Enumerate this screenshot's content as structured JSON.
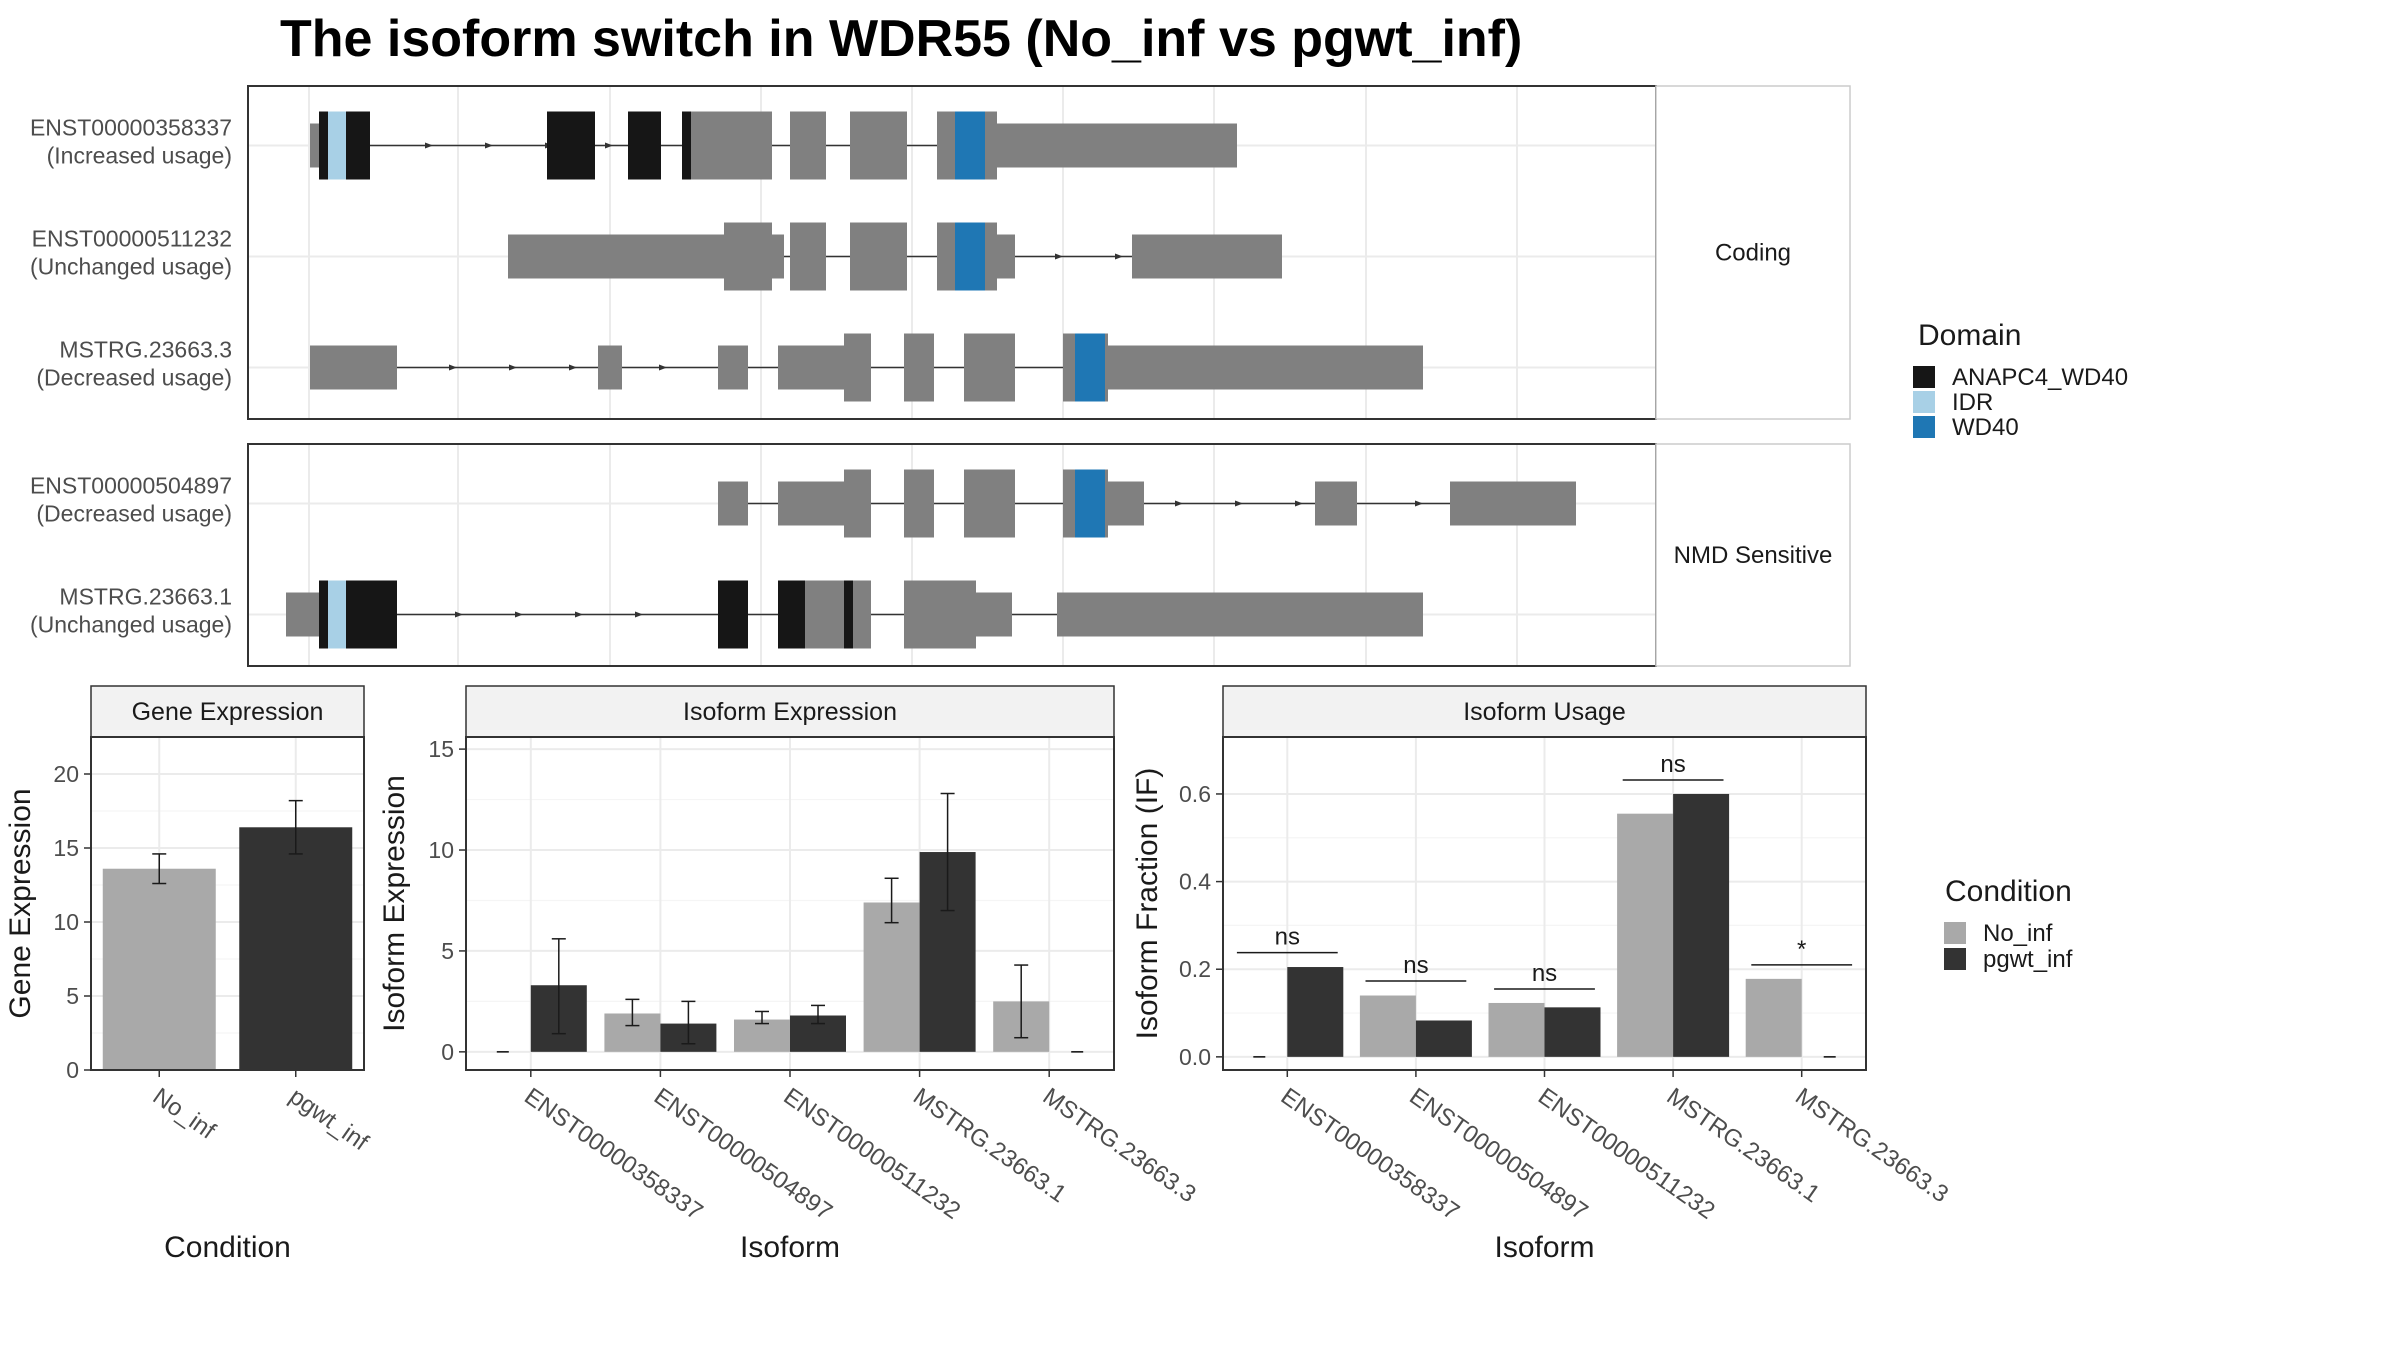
{
  "title": "The isoform switch in WDR55 (No_inf vs pgwt_inf)",
  "colors": {
    "exon": "#808080",
    "ANAPC4_WD40": "#161616",
    "IDR": "#a8d0e6",
    "WD40": "#1f77b4",
    "No_inf": "#a9a9a9",
    "pgwt_inf": "#333333",
    "grid": "#ebebeb",
    "strip": "#f2f2f2",
    "border": "#333333"
  },
  "structure": {
    "domain_legend": {
      "title": "Domain",
      "items": [
        {
          "label": "ANAPC4_WD40",
          "color": "#161616"
        },
        {
          "label": "IDR",
          "color": "#a8d0e6"
        },
        {
          "label": "WD40",
          "color": "#1f77b4"
        }
      ]
    },
    "groups": [
      {
        "label": "Coding",
        "isoforms": [
          {
            "id": "ENST00000358337",
            "usage": "(Increased usage)",
            "blocks": [
              {
                "x0": 0.0,
                "x1": 0.3,
                "h": "utr"
              },
              {
                "x0": 0.3,
                "x1": 2.0,
                "h": "cds"
              },
              {
                "x0": 7.9,
                "x1": 9.5,
                "h": "cds"
              },
              {
                "x0": 10.6,
                "x1": 11.7,
                "h": "cds"
              },
              {
                "x0": 12.4,
                "x1": 15.4,
                "h": "cds"
              },
              {
                "x0": 16.0,
                "x1": 17.2,
                "h": "cds"
              },
              {
                "x0": 18.0,
                "x1": 19.9,
                "h": "cds"
              },
              {
                "x0": 20.9,
                "x1": 22.9,
                "h": "cds"
              },
              {
                "x0": 22.9,
                "x1": 30.9,
                "h": "utr"
              }
            ],
            "domains": [
              {
                "type": "ANAPC4_WD40",
                "x0": 0.3,
                "x1": 0.6
              },
              {
                "type": "IDR",
                "x0": 0.6,
                "x1": 1.2
              },
              {
                "type": "ANAPC4_WD40",
                "x0": 1.2,
                "x1": 1.45
              },
              {
                "type": "ANAPC4_WD40",
                "x0": 1.45,
                "x1": 2.0
              },
              {
                "type": "ANAPC4_WD40",
                "x0": 7.9,
                "x1": 9.5
              },
              {
                "type": "ANAPC4_WD40",
                "x0": 10.6,
                "x1": 11.7
              },
              {
                "type": "ANAPC4_WD40",
                "x0": 12.4,
                "x1": 12.7
              },
              {
                "type": "WD40",
                "x0": 21.5,
                "x1": 22.5
              }
            ],
            "arrows": [
              4.0,
              6.0,
              8.0,
              10.0
            ]
          },
          {
            "id": "ENST00000511232",
            "usage": "(Unchanged usage)",
            "blocks": [
              {
                "x0": 6.6,
                "x1": 15.8,
                "h": "utr"
              },
              {
                "x0": 12.4,
                "x1": 13.8,
                "h": "utr"
              },
              {
                "x0": 13.8,
                "x1": 15.4,
                "h": "cds"
              },
              {
                "x0": 16.0,
                "x1": 17.2,
                "h": "cds"
              },
              {
                "x0": 18.0,
                "x1": 19.9,
                "h": "cds"
              },
              {
                "x0": 20.9,
                "x1": 22.9,
                "h": "cds"
              },
              {
                "x0": 22.9,
                "x1": 23.5,
                "h": "utr"
              },
              {
                "x0": 27.4,
                "x1": 32.4,
                "h": "utr"
              }
            ],
            "domains": [
              {
                "type": "WD40",
                "x0": 21.5,
                "x1": 22.5
              }
            ],
            "arrows": [
              25.0,
              27.0
            ]
          },
          {
            "id": "MSTRG.23663.3",
            "usage": "(Decreased usage)",
            "blocks": [
              {
                "x0": 0.0,
                "x1": 2.9,
                "h": "utr"
              },
              {
                "x0": 9.6,
                "x1": 10.4,
                "h": "utr"
              },
              {
                "x0": 13.6,
                "x1": 14.6,
                "h": "utr"
              },
              {
                "x0": 15.6,
                "x1": 16.5,
                "h": "utr"
              },
              {
                "x0": 16.5,
                "x1": 17.8,
                "h": "utr"
              },
              {
                "x0": 17.8,
                "x1": 18.7,
                "h": "cds"
              },
              {
                "x0": 19.8,
                "x1": 20.8,
                "h": "cds"
              },
              {
                "x0": 21.8,
                "x1": 23.5,
                "h": "cds"
              },
              {
                "x0": 25.1,
                "x1": 26.6,
                "h": "cds"
              },
              {
                "x0": 26.6,
                "x1": 37.1,
                "h": "utr"
              }
            ],
            "domains": [
              {
                "type": "WD40",
                "x0": 25.5,
                "x1": 26.5
              }
            ],
            "arrows": [
              4.8,
              6.8,
              8.8,
              11.8
            ]
          }
        ]
      },
      {
        "label": "NMD Sensitive",
        "isoforms": [
          {
            "id": "ENST00000504897",
            "usage": "(Decreased usage)",
            "blocks": [
              {
                "x0": 13.6,
                "x1": 14.6,
                "h": "utr"
              },
              {
                "x0": 15.6,
                "x1": 16.5,
                "h": "utr"
              },
              {
                "x0": 16.5,
                "x1": 17.8,
                "h": "utr"
              },
              {
                "x0": 17.8,
                "x1": 18.7,
                "h": "cds"
              },
              {
                "x0": 19.8,
                "x1": 20.8,
                "h": "cds"
              },
              {
                "x0": 21.8,
                "x1": 23.5,
                "h": "cds"
              },
              {
                "x0": 25.1,
                "x1": 26.6,
                "h": "cds"
              },
              {
                "x0": 26.6,
                "x1": 27.8,
                "h": "utr"
              },
              {
                "x0": 33.5,
                "x1": 34.9,
                "h": "utr"
              },
              {
                "x0": 38.0,
                "x1": 42.2,
                "h": "utr"
              }
            ],
            "domains": [
              {
                "type": "WD40",
                "x0": 25.5,
                "x1": 26.5
              }
            ],
            "arrows": [
              29.0,
              31.0,
              33.0,
              37.0
            ]
          },
          {
            "id": "MSTRG.23663.1",
            "usage": "(Unchanged usage)",
            "blocks": [
              {
                "x0": -0.8,
                "x1": 0.3,
                "h": "utr"
              },
              {
                "x0": 0.3,
                "x1": 2.9,
                "h": "cds"
              },
              {
                "x0": 13.6,
                "x1": 14.6,
                "h": "cds"
              },
              {
                "x0": 15.6,
                "x1": 16.5,
                "h": "cds"
              },
              {
                "x0": 16.5,
                "x1": 18.7,
                "h": "cds"
              },
              {
                "x0": 19.8,
                "x1": 22.2,
                "h": "cds"
              },
              {
                "x0": 22.2,
                "x1": 23.4,
                "h": "utr"
              },
              {
                "x0": 24.9,
                "x1": 37.1,
                "h": "utr"
              }
            ],
            "domains": [
              {
                "type": "ANAPC4_WD40",
                "x0": 0.3,
                "x1": 0.6
              },
              {
                "type": "IDR",
                "x0": 0.6,
                "x1": 1.2
              },
              {
                "type": "ANAPC4_WD40",
                "x0": 1.2,
                "x1": 1.45
              },
              {
                "type": "ANAPC4_WD40",
                "x0": 1.45,
                "x1": 2.9
              },
              {
                "type": "ANAPC4_WD40",
                "x0": 13.6,
                "x1": 14.6
              },
              {
                "type": "ANAPC4_WD40",
                "x0": 15.6,
                "x1": 16.5
              },
              {
                "type": "ANAPC4_WD40",
                "x0": 17.8,
                "x1": 18.1
              }
            ],
            "arrows": [
              5.0,
              7.0,
              9.0,
              11.0
            ]
          }
        ]
      }
    ]
  },
  "chart_data": [
    {
      "type": "bar",
      "title": "Gene Expression",
      "xlabel": "Condition",
      "ylabel": "Gene Expression",
      "categories": [
        "No_inf",
        "pgwt_inf"
      ],
      "values": [
        13.6,
        16.4
      ],
      "error": [
        [
          12.6,
          14.6
        ],
        [
          14.6,
          18.2
        ]
      ],
      "colors": [
        "#a9a9a9",
        "#333333"
      ],
      "ylim": [
        0,
        22.5
      ],
      "yticks": [
        0,
        5,
        10,
        15,
        20
      ],
      "grid": true
    },
    {
      "type": "bar",
      "title": "Isoform Expression",
      "xlabel": "Isoform",
      "ylabel": "Isoform Expression",
      "categories": [
        "ENST00000358337",
        "ENST00000504897",
        "ENST00000511232",
        "MSTRG.23663.1",
        "MSTRG.23663.3"
      ],
      "series": [
        {
          "name": "No_inf",
          "values": [
            0.0,
            1.9,
            1.6,
            7.4,
            2.5
          ],
          "error": [
            null,
            [
              1.3,
              2.6
            ],
            [
              1.4,
              2.0
            ],
            [
              6.4,
              8.6
            ],
            [
              0.7,
              4.3
            ]
          ]
        },
        {
          "name": "pgwt_inf",
          "values": [
            3.3,
            1.4,
            1.8,
            9.9,
            0.0
          ],
          "error": [
            [
              0.9,
              5.6
            ],
            [
              0.4,
              2.5
            ],
            [
              1.4,
              2.3
            ],
            [
              7.0,
              12.8
            ],
            null
          ]
        }
      ],
      "ylim": [
        -0.9,
        15.6
      ],
      "yticks": [
        0,
        5,
        10,
        15
      ],
      "grid": true
    },
    {
      "type": "bar",
      "title": "Isoform Usage",
      "xlabel": "Isoform",
      "ylabel": "Isoform Fraction (IF)",
      "categories": [
        "ENST00000358337",
        "ENST00000504897",
        "ENST00000511232",
        "MSTRG.23663.1",
        "MSTRG.23663.3"
      ],
      "series": [
        {
          "name": "No_inf",
          "values": [
            0.0,
            0.14,
            0.123,
            0.555,
            0.178
          ]
        },
        {
          "name": "pgwt_inf",
          "values": [
            0.205,
            0.083,
            0.113,
            0.6,
            0.0
          ]
        }
      ],
      "significance": [
        "ns",
        "ns",
        "ns",
        "ns",
        "*"
      ],
      "sig_y": [
        0.238,
        0.173,
        0.155,
        0.632,
        0.21
      ],
      "ylim": [
        -0.03,
        0.73
      ],
      "yticks": [
        0.0,
        0.2,
        0.4,
        0.6
      ],
      "ytick_labels": [
        "0.0",
        "0.2",
        "0.4",
        "0.6"
      ],
      "grid": true
    }
  ],
  "condition_legend": {
    "title": "Condition",
    "items": [
      {
        "label": "No_inf",
        "color": "#a9a9a9"
      },
      {
        "label": "pgwt_inf",
        "color": "#333333"
      }
    ]
  }
}
